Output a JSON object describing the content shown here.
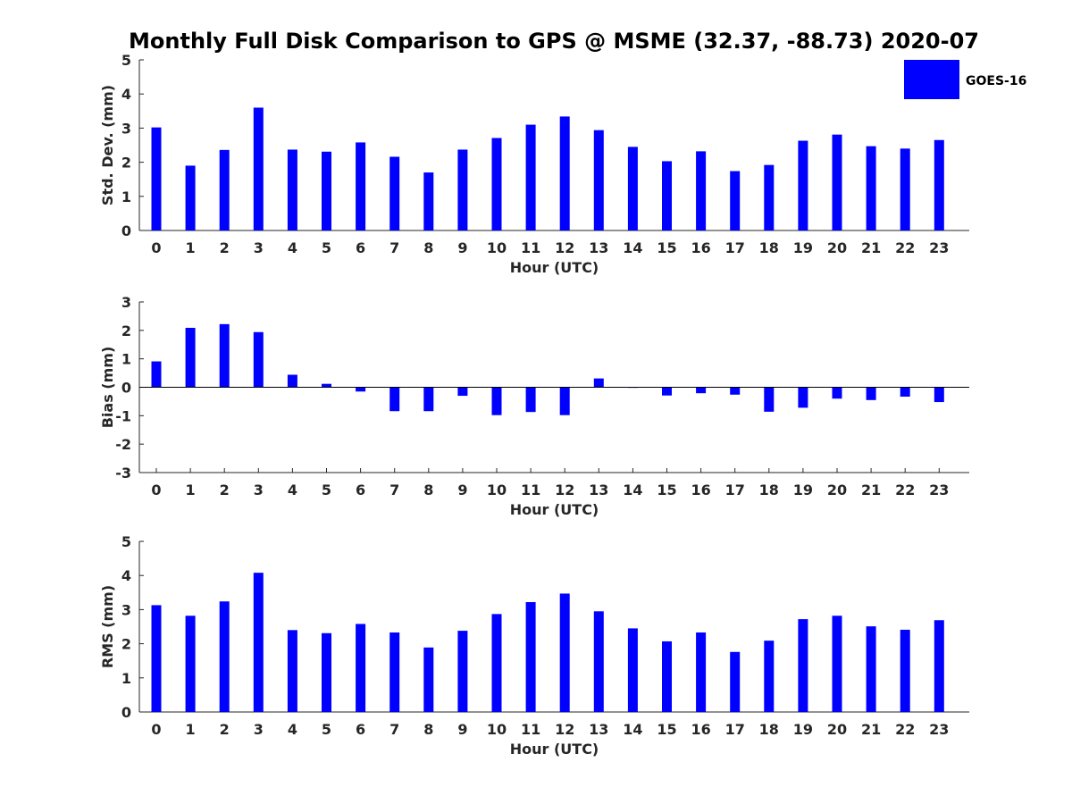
{
  "title": "Monthly Full Disk Comparison to GPS @ MSME (32.37, -88.73) 2020-07",
  "legend": {
    "label": "GOES-16",
    "color": "#0000ff"
  },
  "chart_data": [
    {
      "type": "bar",
      "name": "std-dev",
      "xlabel": "Hour (UTC)",
      "ylabel": "Std. Dev. (mm)",
      "ylim": [
        0,
        5
      ],
      "yticks": [
        0,
        1,
        2,
        3,
        4,
        5
      ],
      "categories": [
        "0",
        "1",
        "2",
        "3",
        "4",
        "5",
        "6",
        "7",
        "8",
        "9",
        "10",
        "11",
        "12",
        "13",
        "14",
        "15",
        "16",
        "17",
        "18",
        "19",
        "20",
        "21",
        "22",
        "23"
      ],
      "series": [
        {
          "name": "GOES-16",
          "values": [
            3.02,
            1.9,
            2.36,
            3.6,
            2.37,
            2.31,
            2.58,
            2.16,
            1.7,
            2.37,
            2.71,
            3.1,
            3.34,
            2.94,
            2.45,
            2.03,
            2.32,
            1.74,
            1.92,
            2.63,
            2.81,
            2.47,
            2.4,
            2.65
          ]
        }
      ]
    },
    {
      "type": "bar",
      "name": "bias",
      "xlabel": "Hour (UTC)",
      "ylabel": "Bias (mm)",
      "ylim": [
        -3,
        3
      ],
      "yticks": [
        -3,
        -2,
        -1,
        0,
        1,
        2,
        3
      ],
      "zero_line": true,
      "categories": [
        "0",
        "1",
        "2",
        "3",
        "4",
        "5",
        "6",
        "7",
        "8",
        "9",
        "10",
        "11",
        "12",
        "13",
        "14",
        "15",
        "16",
        "17",
        "18",
        "19",
        "20",
        "21",
        "22",
        "23"
      ],
      "series": [
        {
          "name": "GOES-16",
          "values": [
            0.91,
            2.09,
            2.22,
            1.94,
            0.44,
            0.12,
            -0.15,
            -0.84,
            -0.84,
            -0.3,
            -0.98,
            -0.87,
            -0.98,
            0.31,
            -0.02,
            -0.29,
            -0.21,
            -0.26,
            -0.86,
            -0.72,
            -0.4,
            -0.45,
            -0.33,
            -0.52
          ]
        }
      ]
    },
    {
      "type": "bar",
      "name": "rms",
      "xlabel": "Hour (UTC)",
      "ylabel": "RMS (mm)",
      "ylim": [
        0,
        5
      ],
      "yticks": [
        0,
        1,
        2,
        3,
        4,
        5
      ],
      "categories": [
        "0",
        "1",
        "2",
        "3",
        "4",
        "5",
        "6",
        "7",
        "8",
        "9",
        "10",
        "11",
        "12",
        "13",
        "14",
        "15",
        "16",
        "17",
        "18",
        "19",
        "20",
        "21",
        "22",
        "23"
      ],
      "series": [
        {
          "name": "GOES-16",
          "values": [
            3.13,
            2.82,
            3.24,
            4.08,
            2.4,
            2.31,
            2.58,
            2.33,
            1.89,
            2.38,
            2.87,
            3.22,
            3.47,
            2.95,
            2.45,
            2.07,
            2.33,
            1.76,
            2.09,
            2.72,
            2.82,
            2.51,
            2.41,
            2.69
          ]
        }
      ]
    }
  ]
}
